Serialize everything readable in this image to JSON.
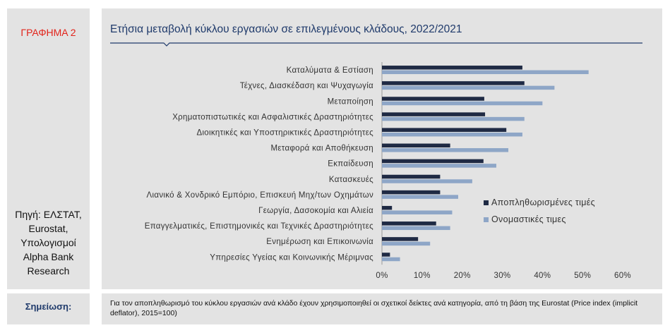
{
  "side": {
    "label": "ΓΡΑΦΗΜΑ 2",
    "source": "Πηγή: ΕΛΣΤΑΤ, Eurostat, Υπολογισμοί Alpha Bank Research"
  },
  "note": {
    "title": "Σημείωση:",
    "text": "Για τον αποπληθωρισμό του κύκλου εργασιών ανά κλάδο έχουν χρησιμοποιηθεί οι σχετικοί δείκτες ανά κατηγορία, από τη βάση της Eurostat (Price index (implicit deflator), 2015=100)"
  },
  "colors": {
    "real": "#1f2a44",
    "nominal": "#8ea6c7",
    "title": "#1f3a6b",
    "accent": "#e2231a"
  },
  "chart_data": {
    "type": "bar",
    "orientation": "horizontal",
    "title": "Ετήσια μεταβολή κύκλου εργασιών σε επιλεγμένους κλάδους, 2022/2021",
    "categories": [
      "Καταλύματα & Εστίαση",
      "Τέχνες, Διασκέδαση και Ψυχαγωγία",
      "Μεταποίηση",
      "Χρηματοπιστωτικές και Ασφαλιστικές Δραστηριότητες",
      "Διοικητικές και Υποστηρικτικές Δραστηριότητες",
      "Μεταφορά και Αποθήκευση",
      "Εκπαίδευση",
      "Κατασκευές",
      "Λιανικό & Χονδρικό Εμπόριο, Επισκευή Μηχ/των Οχημάτων",
      "Γεωργία, Δασοκομία και Αλιεία",
      "Επαγγελματικές, Επιστημονικές και Τεχνικές Δραστηριότητες",
      "Ενημέρωση και Επικοινωνία",
      "Υπηρεσίες Υγείας και Κοινωνικής Μέριμνας"
    ],
    "series": [
      {
        "name": "Αποπληθωρισμένες τιμές",
        "values": [
          35,
          35.5,
          25.5,
          25.7,
          31,
          17,
          25.3,
          14.5,
          14.5,
          2.5,
          13.5,
          9,
          2
        ]
      },
      {
        "name": "Ονομαστικές τιμες",
        "values": [
          51.5,
          43,
          40,
          35.5,
          35,
          31.5,
          28.5,
          22.5,
          19,
          17.5,
          17,
          12,
          4.5
        ]
      }
    ],
    "xlim": [
      0,
      60
    ],
    "xticks": [
      "0%",
      "10%",
      "20%",
      "30%",
      "40%",
      "50%",
      "60%"
    ],
    "legend_position": "right"
  }
}
